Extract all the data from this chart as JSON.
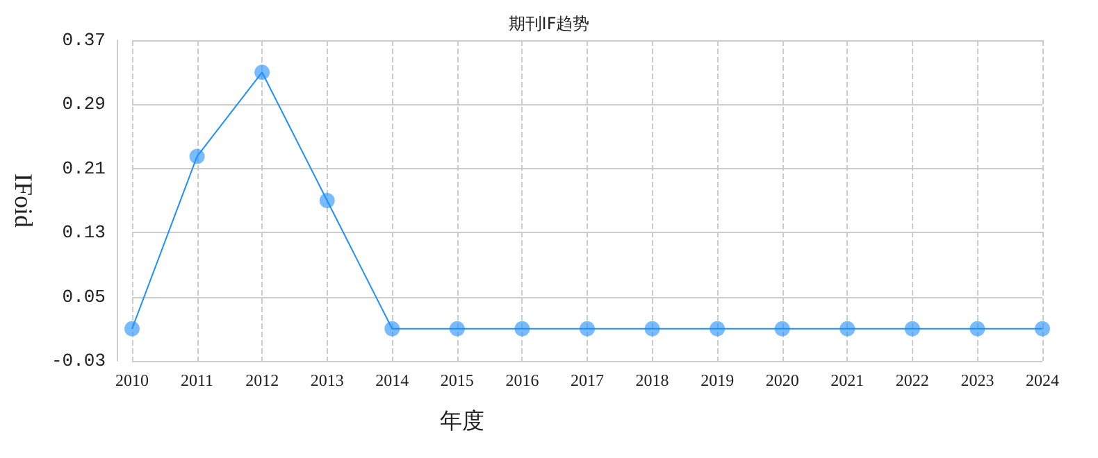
{
  "chart_data": {
    "type": "line",
    "title": "期刊IF趋势",
    "xlabel": "年度",
    "ylabel": "IFoid",
    "categories": [
      "2010",
      "2011",
      "2012",
      "2013",
      "2014",
      "2015",
      "2016",
      "2017",
      "2018",
      "2019",
      "2020",
      "2021",
      "2022",
      "2023",
      "2024"
    ],
    "series": [
      {
        "color": "#1e90ff",
        "values": [
          0.01,
          0.225,
          0.33,
          0.17,
          0.01,
          0.01,
          0.01,
          0.01,
          0.01,
          0.01,
          0.01,
          0.01,
          0.01,
          0.01,
          0.01
        ]
      }
    ],
    "marker": "circle",
    "ylim": [
      -0.03,
      0.37
    ],
    "yticks": [
      -0.03,
      0.05,
      0.13,
      0.21,
      0.29,
      0.37
    ],
    "grid": true
  }
}
